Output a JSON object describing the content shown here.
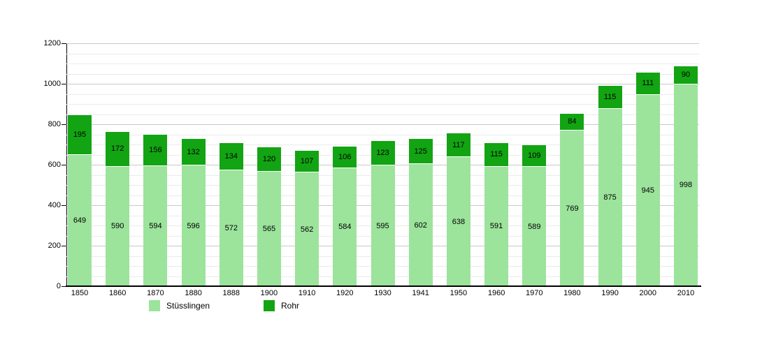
{
  "chart_data": {
    "type": "bar",
    "stacked": true,
    "title": "",
    "xlabel": "",
    "ylabel": "",
    "categories": [
      "1850",
      "1860",
      "1870",
      "1880",
      "1888",
      "1900",
      "1910",
      "1920",
      "1930",
      "1941",
      "1950",
      "1960",
      "1970",
      "1980",
      "1990",
      "2000",
      "2010"
    ],
    "series": [
      {
        "name": "Stüsslingen",
        "color": "#9CE39C",
        "values": [
          649,
          590,
          594,
          596,
          572,
          565,
          562,
          584,
          595,
          602,
          638,
          591,
          589,
          769,
          875,
          945,
          998
        ]
      },
      {
        "name": "Rohr",
        "color": "#12A412",
        "values": [
          195,
          172,
          156,
          132,
          134,
          120,
          107,
          106,
          123,
          125,
          117,
          115,
          109,
          84,
          115,
          111,
          90
        ]
      }
    ],
    "ylim": [
      0,
      1200
    ],
    "yticks": [
      "0",
      "200",
      "400",
      "600",
      "800",
      "1000",
      "1200"
    ],
    "ytick_step": 200,
    "minor_grid_step": 50,
    "grid": "horizontal",
    "legend_position": "bottom-left",
    "label_color": "#000000",
    "axis_color": "#000000",
    "minor_grid_color": "#ebebeb",
    "major_grid_color": "#c9c9c9"
  },
  "legend": {
    "items": [
      {
        "label": "Stüsslingen"
      },
      {
        "label": "Rohr"
      }
    ]
  }
}
